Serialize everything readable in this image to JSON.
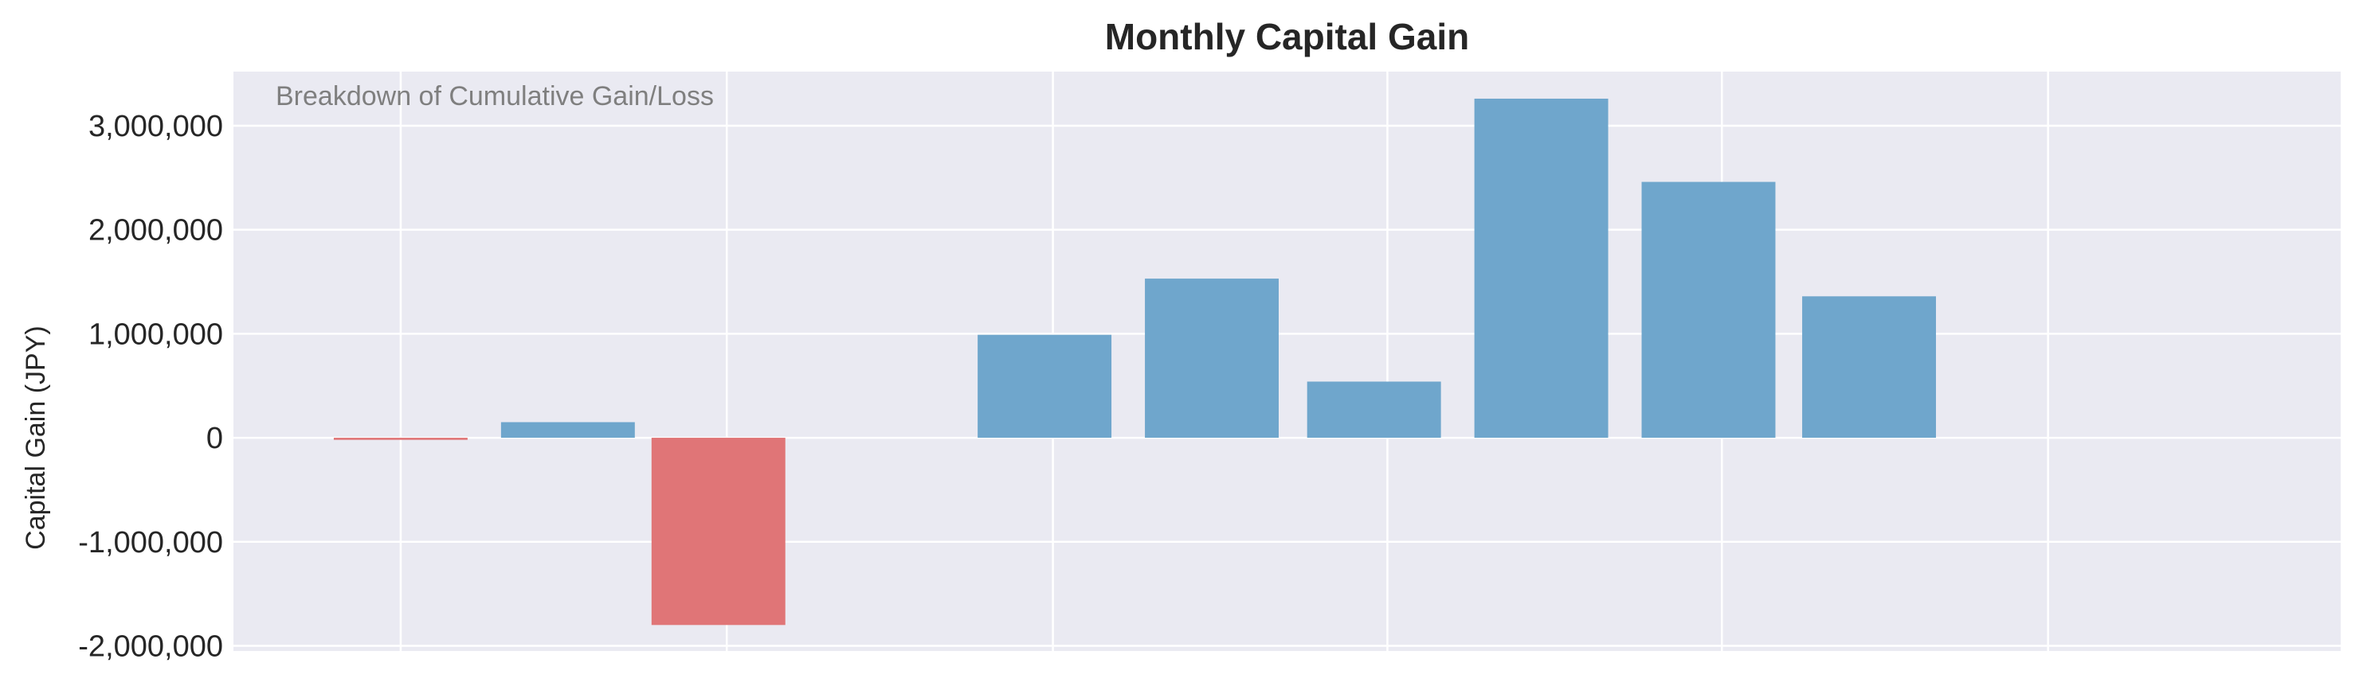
{
  "chart_data": {
    "type": "bar",
    "title": "Monthly Capital Gain",
    "annotation": "Breakdown of Cumulative Gain/Loss",
    "xlabel": "",
    "ylabel": "Capital Gain (JPY)",
    "ylim": [
      -2050000,
      3520000
    ],
    "yticks": [
      -2000000,
      -1000000,
      0,
      1000000,
      2000000,
      3000000
    ],
    "ytick_labels": [
      "-2,000,000",
      "-1,000,000",
      "0",
      "1,000,000",
      "2,000,000",
      "3,000,000"
    ],
    "xlim": [
      0,
      12.6
    ],
    "xgrid": [
      1,
      2.95,
      4.9,
      6.9,
      8.9,
      10.85
    ],
    "bars": [
      {
        "x": 1.0,
        "value": -20000
      },
      {
        "x": 2.0,
        "value": 150000
      },
      {
        "x": 2.9,
        "value": -1800000
      },
      {
        "x": 4.85,
        "value": 990000
      },
      {
        "x": 5.85,
        "value": 1530000
      },
      {
        "x": 6.82,
        "value": 540000
      },
      {
        "x": 7.82,
        "value": 3260000
      },
      {
        "x": 8.82,
        "value": 2460000
      },
      {
        "x": 9.78,
        "value": 1360000
      }
    ],
    "bar_width": 0.8,
    "grid": true,
    "colors": {
      "positive": "#6fa6cc",
      "negative": "#e07577",
      "background": "#eaeaf2",
      "grid": "#ffffff"
    }
  }
}
